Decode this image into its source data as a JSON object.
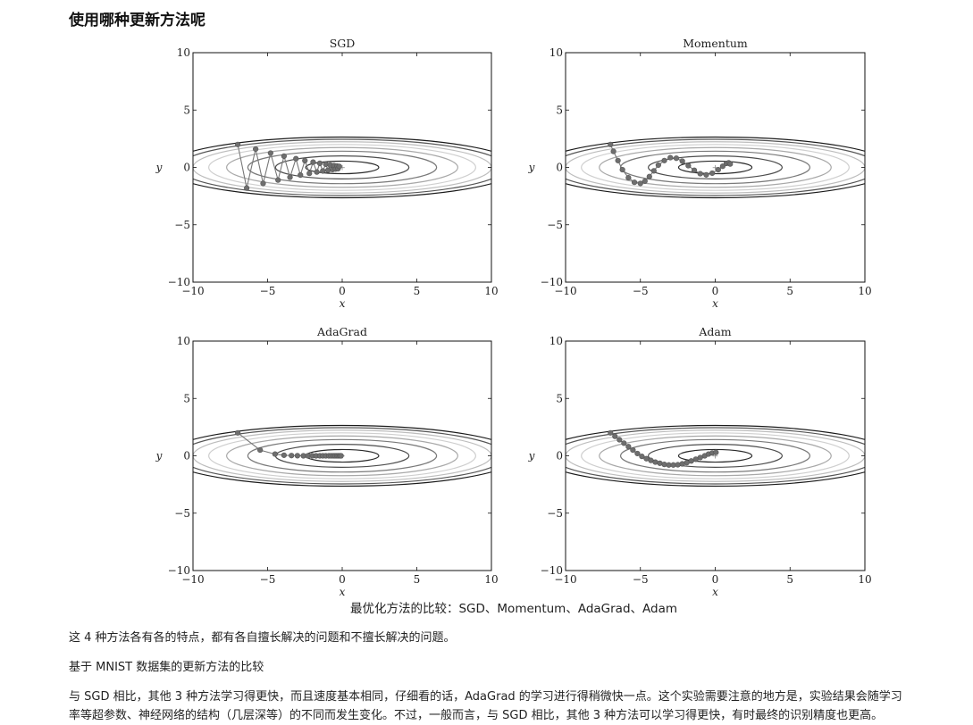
{
  "page": {
    "title": "使用哪种更新方法呢",
    "caption": "最优化方法的比较：SGD、Momentum、AdaGrad、Adam",
    "paragraphs": [
      "这 4 种方法各有各的特点，都有各自擅长解决的问题和不擅长解决的问题。",
      "基于 MNIST 数据集的更新方法的比较",
      "与 SGD 相比，其他 3 种方法学习得更快，而且速度基本相同，仔细看的话，AdaGrad 的学习进行得稍微快一点。这个实验需要注意的地方是，实验结果会随学习",
      "率等超参数、神经网络的结构（几层深等）的不同而发生变化。不过，一般而言，与 SGD 相比，其他 3 种方法可以学习得更快，有时最终的识别精度也更高。"
    ]
  },
  "chart_data": [
    {
      "type": "scatter",
      "title": "SGD",
      "xlabel": "x",
      "ylabel": "y",
      "xlim": [
        -10,
        10
      ],
      "ylim": [
        -10,
        10
      ],
      "xticks": [
        -10,
        -5,
        0,
        5,
        10
      ],
      "yticks": [
        -10,
        -5,
        0,
        5,
        10
      ],
      "contours": [
        0.3,
        1,
        2,
        3,
        4,
        5,
        6,
        7
      ],
      "x": [
        -7.0,
        -6.4,
        -5.8,
        -5.3,
        -4.8,
        -4.3,
        -3.9,
        -3.5,
        -3.1,
        -2.8,
        -2.5,
        -2.2,
        -1.95,
        -1.7,
        -1.5,
        -1.3,
        -1.1,
        -0.95,
        -0.8,
        -0.65,
        -0.55,
        -0.45,
        -0.35,
        -0.28,
        -0.2
      ],
      "y": [
        2.0,
        -1.8,
        1.6,
        -1.4,
        1.25,
        -1.1,
        0.98,
        -0.86,
        0.76,
        -0.67,
        0.59,
        -0.52,
        0.46,
        -0.4,
        0.36,
        -0.31,
        0.28,
        -0.24,
        0.21,
        -0.19,
        0.16,
        -0.14,
        0.12,
        -0.11,
        0.09
      ]
    },
    {
      "type": "scatter",
      "title": "Momentum",
      "xlabel": "x",
      "ylabel": "y",
      "xlim": [
        -10,
        10
      ],
      "ylim": [
        -10,
        10
      ],
      "xticks": [
        -10,
        -5,
        0,
        5,
        10
      ],
      "yticks": [
        -10,
        -5,
        0,
        5,
        10
      ],
      "contours": [
        0.3,
        1,
        2,
        3,
        4,
        5,
        6,
        7
      ],
      "x": [
        -7.0,
        -6.8,
        -6.5,
        -6.2,
        -5.8,
        -5.4,
        -5.0,
        -4.7,
        -4.4,
        -4.1,
        -3.8,
        -3.4,
        -3.0,
        -2.6,
        -2.2,
        -1.8,
        -1.4,
        -1.0,
        -0.6,
        -0.2,
        0.2,
        0.5,
        0.75,
        0.9,
        1.0
      ],
      "y": [
        2.0,
        1.4,
        0.6,
        -0.2,
        -0.9,
        -1.3,
        -1.4,
        -1.2,
        -0.8,
        -0.3,
        0.2,
        0.6,
        0.85,
        0.8,
        0.55,
        0.15,
        -0.25,
        -0.55,
        -0.65,
        -0.5,
        -0.2,
        0.1,
        0.35,
        0.4,
        0.3
      ]
    },
    {
      "type": "scatter",
      "title": "AdaGrad",
      "xlabel": "x",
      "ylabel": "y",
      "xlim": [
        -10,
        10
      ],
      "ylim": [
        -10,
        10
      ],
      "xticks": [
        -10,
        -5,
        0,
        5,
        10
      ],
      "yticks": [
        -10,
        -5,
        0,
        5,
        10
      ],
      "contours": [
        0.3,
        1,
        2,
        3,
        4,
        5,
        6,
        7
      ],
      "x": [
        -7.0,
        -5.5,
        -4.5,
        -3.9,
        -3.4,
        -3.0,
        -2.6,
        -2.3,
        -2.0,
        -1.75,
        -1.5,
        -1.3,
        -1.1,
        -0.9,
        -0.75,
        -0.6,
        -0.48,
        -0.36,
        -0.26,
        -0.16,
        -0.08
      ],
      "y": [
        2.0,
        0.5,
        0.15,
        0.05,
        0.02,
        0.01,
        0,
        0,
        0,
        0,
        0,
        0,
        0,
        0,
        0,
        0,
        0,
        0,
        0,
        0,
        0
      ]
    },
    {
      "type": "scatter",
      "title": "Adam",
      "xlabel": "x",
      "ylabel": "y",
      "xlim": [
        -10,
        10
      ],
      "ylim": [
        -10,
        10
      ],
      "xticks": [
        -10,
        -5,
        0,
        5,
        10
      ],
      "yticks": [
        -10,
        -5,
        0,
        5,
        10
      ],
      "contours": [
        0.3,
        1,
        2,
        3,
        4,
        5,
        6,
        7
      ],
      "x": [
        -7.0,
        -6.7,
        -6.4,
        -6.1,
        -5.8,
        -5.5,
        -5.2,
        -4.9,
        -4.6,
        -4.3,
        -4.0,
        -3.7,
        -3.4,
        -3.1,
        -2.8,
        -2.5,
        -2.2,
        -1.9,
        -1.6,
        -1.3,
        -1.0,
        -0.7,
        -0.45,
        -0.2,
        0.05
      ],
      "y": [
        2.0,
        1.7,
        1.4,
        1.1,
        0.8,
        0.5,
        0.2,
        -0.05,
        -0.25,
        -0.4,
        -0.55,
        -0.65,
        -0.75,
        -0.8,
        -0.8,
        -0.78,
        -0.7,
        -0.6,
        -0.45,
        -0.3,
        -0.15,
        0,
        0.15,
        0.25,
        0.3
      ]
    }
  ]
}
